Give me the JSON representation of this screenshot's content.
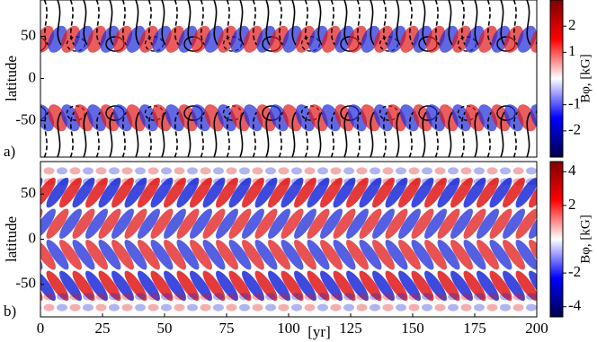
{
  "chart_data": [
    {
      "type": "heatmap",
      "panel_label": "a)",
      "ylabel": "latitude",
      "xlim": [
        0,
        200
      ],
      "ylim": [
        -93,
        93
      ],
      "yticks": [
        -50,
        0,
        50
      ],
      "colorbar": {
        "label": "Bφ, [kG]",
        "lim": [
          -3,
          3
        ],
        "ticks": [
          -2,
          -1,
          1,
          2
        ]
      }
    },
    {
      "type": "heatmap",
      "panel_label": "b)",
      "ylabel": "latitude",
      "xlabel": "[yr]",
      "xlim": [
        0,
        200
      ],
      "xticks": [
        0,
        25,
        50,
        75,
        100,
        125,
        150,
        175,
        200
      ],
      "ylim": [
        -86,
        86
      ],
      "yticks": [
        -50,
        0,
        50
      ],
      "colorbar": {
        "label": "Bφ, [kG]",
        "lim": [
          -4.6,
          4.6
        ],
        "ticks": [
          -4,
          -2,
          2,
          4
        ]
      }
    }
  ]
}
